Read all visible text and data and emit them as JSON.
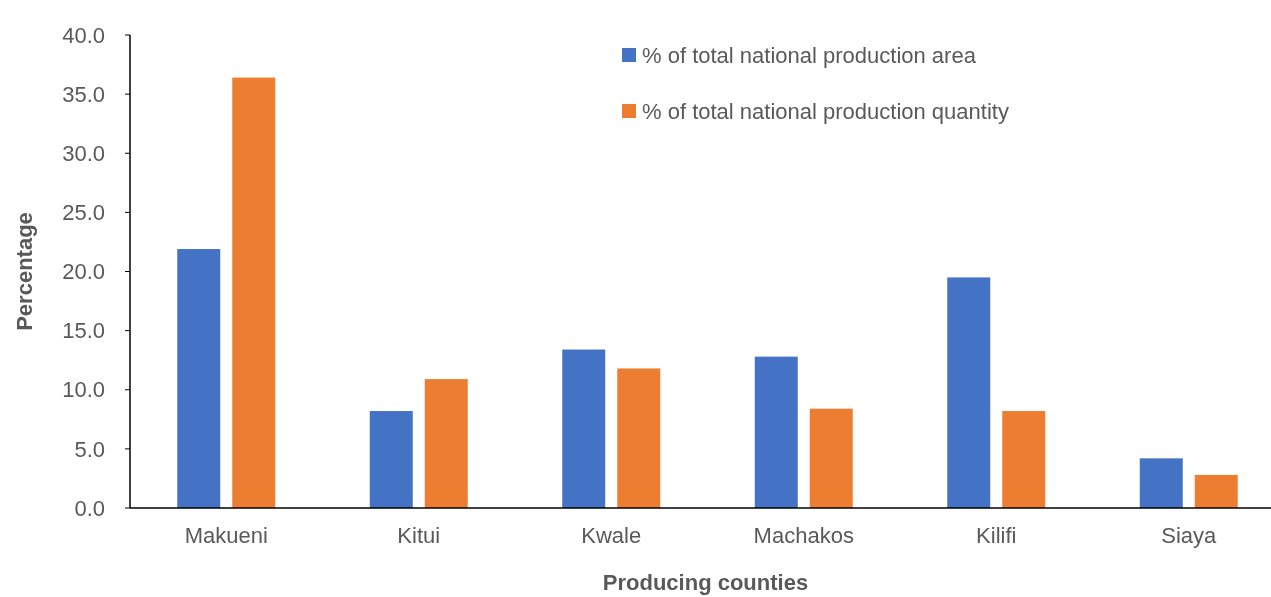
{
  "chart_data": {
    "type": "bar",
    "xlabel": "Producing counties",
    "ylabel": "Percentage",
    "categories": [
      "Makueni",
      "Kitui",
      "Kwale",
      "Machakos",
      "Kilifi",
      "Siaya"
    ],
    "series": [
      {
        "name": "% of total national production area",
        "color": "#4472c4",
        "values": [
          21.9,
          8.2,
          13.4,
          12.8,
          19.5,
          4.2
        ]
      },
      {
        "name": "% of total national production quantity",
        "color": "#ed7d31",
        "values": [
          36.4,
          10.9,
          11.8,
          8.4,
          8.2,
          2.8
        ]
      }
    ],
    "ylim": [
      0,
      40
    ],
    "yticks": [
      {
        "value": 0,
        "label": "0.0"
      },
      {
        "value": 5,
        "label": "5.0"
      },
      {
        "value": 10,
        "label": "10.0"
      },
      {
        "value": 15,
        "label": "15.0"
      },
      {
        "value": 20,
        "label": "20.0"
      },
      {
        "value": 25,
        "label": "25.0"
      },
      {
        "value": 30,
        "label": "30.0"
      },
      {
        "value": 35,
        "label": "35.0"
      },
      {
        "value": 40,
        "label": "40.0"
      }
    ],
    "grid": false,
    "legend": "top right"
  }
}
